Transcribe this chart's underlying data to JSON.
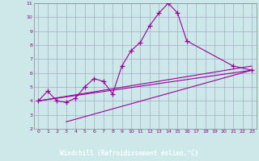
{
  "background_color": "#cce8e8",
  "grid_color": "#aaaacc",
  "line_color": "#990099",
  "xlabel": "Windchill (Refroidissement éolien,°C)",
  "xlabel_bg": "#660066",
  "xlabel_fg": "#ffffff",
  "xlim": [
    -0.5,
    23.5
  ],
  "ylim": [
    2,
    11
  ],
  "xtick_labels": [
    "0",
    "1",
    "2",
    "3",
    "4",
    "5",
    "6",
    "7",
    "8",
    "9",
    "10",
    "11",
    "12",
    "13",
    "14",
    "15",
    "16",
    "17",
    "18",
    "19",
    "20",
    "21",
    "22",
    "23"
  ],
  "xtick_vals": [
    0,
    1,
    2,
    3,
    4,
    5,
    6,
    7,
    8,
    9,
    10,
    11,
    12,
    13,
    14,
    15,
    16,
    17,
    18,
    19,
    20,
    21,
    22,
    23
  ],
  "ytick_vals": [
    2,
    3,
    4,
    5,
    6,
    7,
    8,
    9,
    10,
    11
  ],
  "series_main": {
    "x": [
      0,
      1,
      2,
      3,
      4,
      5,
      6,
      7,
      8,
      9,
      10,
      11,
      12,
      13,
      14,
      15,
      16,
      21,
      23
    ],
    "y": [
      4.0,
      4.7,
      4.0,
      3.9,
      4.2,
      5.0,
      5.6,
      5.4,
      4.5,
      6.5,
      7.6,
      8.2,
      9.4,
      10.3,
      11.0,
      10.3,
      8.3,
      6.5,
      6.2
    ]
  },
  "series_lines": [
    {
      "x": [
        0,
        23
      ],
      "y": [
        4.0,
        6.2
      ]
    },
    {
      "x": [
        0,
        23
      ],
      "y": [
        4.0,
        6.5
      ]
    },
    {
      "x": [
        3,
        23
      ],
      "y": [
        2.5,
        6.2
      ]
    }
  ]
}
